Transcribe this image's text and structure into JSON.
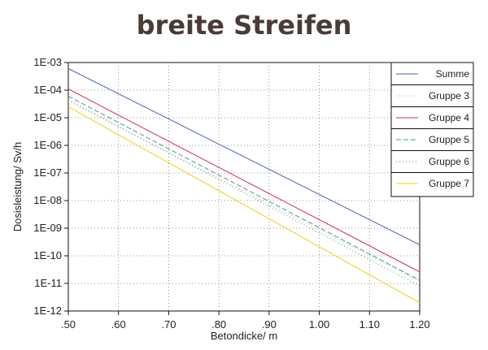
{
  "chart_data": {
    "type": "line",
    "title": "breite Streifen",
    "xlabel": "Betondicke/ m",
    "ylabel": "Dosisleistung/ Sv/h",
    "xlim": [
      0.5,
      1.2
    ],
    "ylim": [
      1e-12,
      0.001
    ],
    "y_scale": "log",
    "grid": true,
    "legend_position": "top-right",
    "x_ticks": [
      ".50",
      ".60",
      ".70",
      ".80",
      ".90",
      "1.00",
      "1.10",
      "1.20"
    ],
    "y_ticks": [
      "1E-03",
      "1E-04",
      "1E-05",
      "1E-06",
      "1E-07",
      "1E-08",
      "1E-09",
      "1E-10",
      "1E-11",
      "1E-12"
    ],
    "series": [
      {
        "name": "Summe",
        "color": "#4a63c8",
        "dash": "solid",
        "x": [
          0.5,
          1.2
        ],
        "y": [
          0.0006,
          2.5e-10
        ]
      },
      {
        "name": "Gruppe 3",
        "color": "#a0b0b8",
        "dash": "dot",
        "x": [
          0.5,
          1.2
        ],
        "y": [
          4e-05,
          1.2e-11
        ]
      },
      {
        "name": "Gruppe 4",
        "color": "#d0304a",
        "dash": "solid",
        "x": [
          0.5,
          1.2
        ],
        "y": [
          0.00011,
          2.6e-11
        ]
      },
      {
        "name": "Gruppe 5",
        "color": "#4a9a8a",
        "dash": "dash",
        "x": [
          0.5,
          1.2
        ],
        "y": [
          6e-05,
          1.3e-11
        ]
      },
      {
        "name": "Gruppe 6",
        "color": "#6a8a6a",
        "dash": "dot",
        "x": [
          0.5,
          1.2
        ],
        "y": [
          4.5e-05,
          8e-12
        ]
      },
      {
        "name": "Gruppe 7",
        "color": "#f0d000",
        "dash": "solid",
        "x": [
          0.5,
          1.2
        ],
        "y": [
          2.5e-05,
          2e-12
        ]
      }
    ]
  }
}
